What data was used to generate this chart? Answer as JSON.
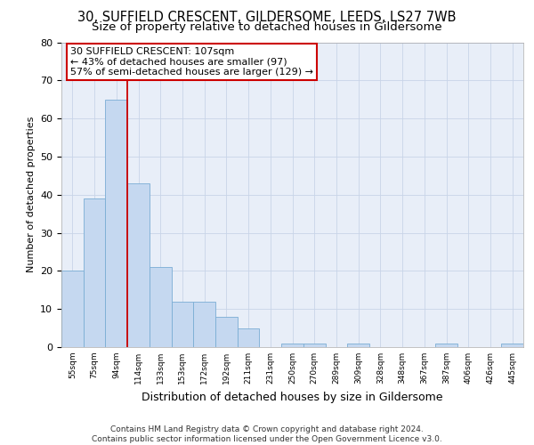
{
  "title_line1": "30, SUFFIELD CRESCENT, GILDERSOME, LEEDS, LS27 7WB",
  "title_line2": "Size of property relative to detached houses in Gildersome",
  "xlabel": "Distribution of detached houses by size in Gildersome",
  "ylabel": "Number of detached properties",
  "categories": [
    "55sqm",
    "75sqm",
    "94sqm",
    "114sqm",
    "133sqm",
    "153sqm",
    "172sqm",
    "192sqm",
    "211sqm",
    "231sqm",
    "250sqm",
    "270sqm",
    "289sqm",
    "309sqm",
    "328sqm",
    "348sqm",
    "367sqm",
    "387sqm",
    "406sqm",
    "426sqm",
    "445sqm"
  ],
  "values": [
    20,
    39,
    65,
    43,
    21,
    12,
    12,
    8,
    5,
    0,
    1,
    1,
    0,
    1,
    0,
    0,
    0,
    1,
    0,
    0,
    1
  ],
  "bar_color": "#c5d8f0",
  "bar_edge_color": "#7aadd4",
  "grid_color": "#c8d4e8",
  "bg_color": "#e8eef8",
  "vline_color": "#cc0000",
  "annotation_text": "30 SUFFIELD CRESCENT: 107sqm\n← 43% of detached houses are smaller (97)\n57% of semi-detached houses are larger (129) →",
  "annotation_box_color": "#ffffff",
  "annotation_box_edge": "#cc0000",
  "ylim": [
    0,
    80
  ],
  "footer": "Contains HM Land Registry data © Crown copyright and database right 2024.\nContains public sector information licensed under the Open Government Licence v3.0.",
  "title_fontsize": 10.5,
  "subtitle_fontsize": 9.5,
  "annot_fontsize": 8,
  "footer_fontsize": 6.5,
  "ylabel_fontsize": 8,
  "xlabel_fontsize": 9
}
